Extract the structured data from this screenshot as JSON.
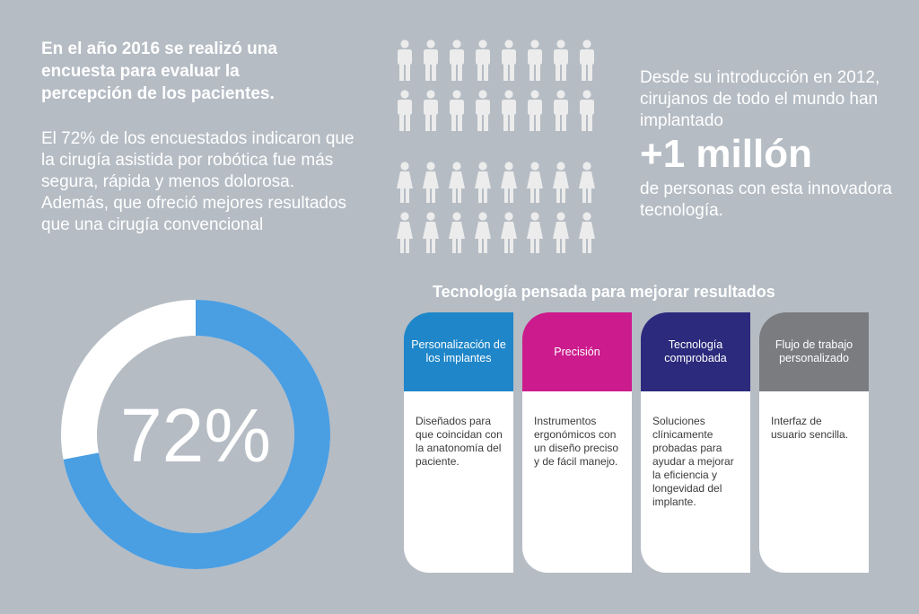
{
  "survey": {
    "heading": "En el año 2016 se realizó una encuesta para evaluar la percepción de los pacientes.",
    "body": "El 72% de los encuestados indicaron que la cirugía asistida por robótica fue más segura, rápida y menos dolorosa. Además, que ofreció mejores resultados que una cirugía convencional"
  },
  "pictogram": {
    "rows": 4,
    "per_row": 8,
    "color": "#ececec"
  },
  "impact": {
    "intro": "Desde su introducción en 2012, cirujanos de todo el mundo han implantado",
    "big_number": "+1 millón",
    "outro": "de personas con esta innovadora tecnología."
  },
  "donut": {
    "label": "72%",
    "value": 0.72,
    "fill_color": "#4a9ee2",
    "track_color": "#ffffff"
  },
  "section_title": "Tecnología pensada para mejorar resultados",
  "cards": [
    {
      "title": "Personalización de los implantes",
      "text": "Diseñados para que coincidan con la anatonomía del paciente.",
      "color": "#1f86c9"
    },
    {
      "title": "Precisión",
      "text": "Instrumentos ergonómicos con un diseño preciso y de fácil manejo.",
      "color": "#cc1b8d"
    },
    {
      "title": "Tecnología comprobada",
      "text": "Soluciones clínicamente probadas para ayudar a mejorar la eficiencia y longevidad del implante.",
      "color": "#2b2a7c"
    },
    {
      "title": "Flujo de trabajo personalizado",
      "text": "Interfaz de usuario sencilla.",
      "color": "#7a7c80"
    }
  ]
}
